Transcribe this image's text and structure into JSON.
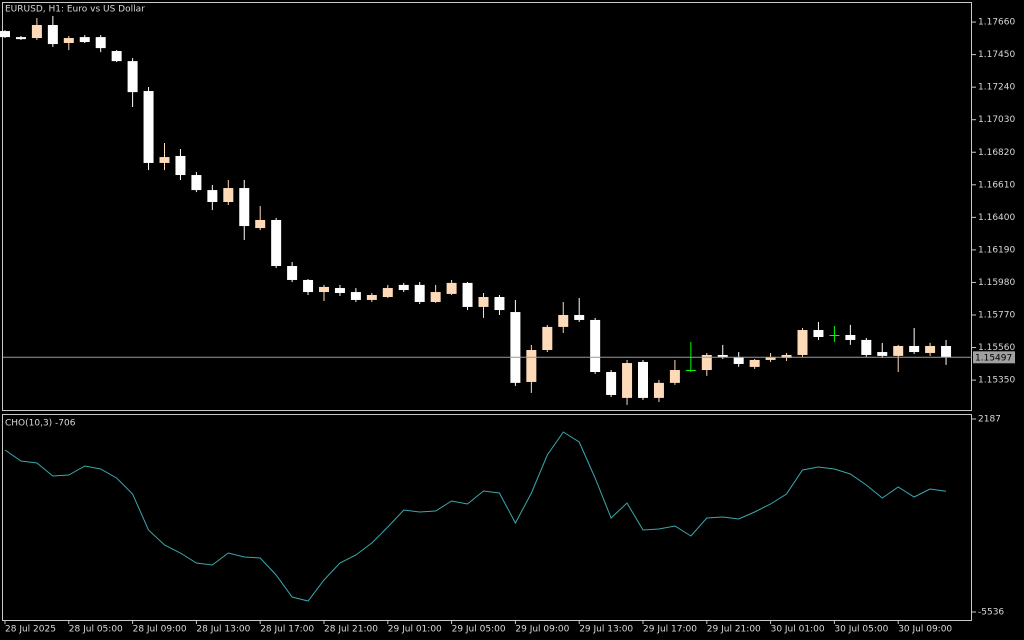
{
  "chart_data": [
    {
      "type": "candlestick",
      "title": "EURUSD, H1:  Euro vs US Dollar",
      "categories": [
        "28 Jul 2025",
        null,
        null,
        null,
        "28 Jul 05:00",
        null,
        null,
        null,
        "28 Jul 09:00",
        null,
        null,
        null,
        "28 Jul 13:00",
        null,
        null,
        null,
        "28 Jul 17:00",
        null,
        null,
        null,
        "28 Jul 21:00",
        null,
        null,
        null,
        "29 Jul 01:00",
        null,
        null,
        null,
        "29 Jul 05:00",
        null,
        null,
        null,
        "29 Jul 09:00",
        null,
        null,
        null,
        "29 Jul 13:00",
        null,
        null,
        null,
        "29 Jul 17:00",
        null,
        null,
        null,
        "29 Jul 21:00",
        null,
        null,
        null,
        "30 Jul 01:00",
        null,
        null,
        null,
        "30 Jul 05:00",
        null,
        null,
        null,
        "30 Jul 09:00",
        null,
        null,
        null
      ],
      "open": [
        1.17602,
        1.17563,
        1.17557,
        1.17641,
        1.17525,
        1.17563,
        1.17563,
        1.17473,
        1.17408,
        1.17215,
        1.16751,
        1.16796,
        1.16673,
        1.16576,
        1.16499,
        1.16589,
        1.16331,
        1.16383,
        1.16086,
        1.15996,
        1.15918,
        1.15944,
        1.15918,
        1.15867,
        1.15886,
        1.15964,
        1.15964,
        1.15854,
        1.15906,
        1.15977,
        1.15822,
        1.15886,
        1.15789,
        1.15338,
        1.15544,
        1.15693,
        1.1577,
        1.15738,
        1.15402,
        1.15235,
        1.15467,
        1.15235,
        1.15332,
        1.15415,
        1.15415,
        1.15512,
        1.15499,
        1.15435,
        1.1548,
        1.15493,
        1.15512,
        1.15673,
        1.15641,
        1.15641,
        1.15609,
        1.15531,
        1.15506,
        1.1557,
        1.15525,
        1.1557
      ],
      "high": [
        1.17608,
        1.1757,
        1.17686,
        1.17699,
        1.1757,
        1.17576,
        1.17576,
        1.17479,
        1.17428,
        1.17241,
        1.1688,
        1.16841,
        1.16692,
        1.16609,
        1.16641,
        1.16641,
        1.16473,
        1.16396,
        1.16112,
        1.16002,
        1.15964,
        1.15964,
        1.15944,
        1.15912,
        1.15964,
        1.15977,
        1.15983,
        1.15964,
        1.15996,
        1.15983,
        1.15912,
        1.15899,
        1.15867,
        1.15577,
        1.15706,
        1.15854,
        1.1588,
        1.15751,
        1.15415,
        1.1548,
        1.1548,
        1.15351,
        1.1548,
        1.15596,
        1.15525,
        1.15577,
        1.15531,
        1.15486,
        1.15525,
        1.15525,
        1.15686,
        1.15725,
        1.15699,
        1.15706,
        1.15622,
        1.1559,
        1.15577,
        1.15686,
        1.1559,
        1.15609
      ],
      "low": [
        1.17557,
        1.17544,
        1.17544,
        1.17499,
        1.17479,
        1.17525,
        1.17466,
        1.17402,
        1.17112,
        1.16705,
        1.16705,
        1.16641,
        1.16563,
        1.16447,
        1.1648,
        1.16254,
        1.16318,
        1.16073,
        1.15983,
        1.15899,
        1.1586,
        1.15893,
        1.15854,
        1.15854,
        1.1588,
        1.15918,
        1.15841,
        1.15848,
        1.15899,
        1.15802,
        1.15751,
        1.1577,
        1.15312,
        1.15267,
        1.15531,
        1.15654,
        1.15725,
        1.1539,
        1.15241,
        1.1519,
        1.15222,
        1.15209,
        1.15319,
        1.15402,
        1.15377,
        1.15486,
        1.15435,
        1.15422,
        1.15467,
        1.15473,
        1.15499,
        1.15609,
        1.15596,
        1.15577,
        1.15499,
        1.15493,
        1.15402,
        1.15519,
        1.15506,
        1.15448
      ],
      "close": [
        1.17563,
        1.1755,
        1.17641,
        1.17518,
        1.17557,
        1.17531,
        1.17492,
        1.17408,
        1.17208,
        1.16751,
        1.16789,
        1.16673,
        1.16576,
        1.16499,
        1.16589,
        1.16344,
        1.16383,
        1.16086,
        1.15996,
        1.15918,
        1.15951,
        1.15912,
        1.15867,
        1.15899,
        1.15944,
        1.15931,
        1.15854,
        1.15918,
        1.15977,
        1.15822,
        1.15886,
        1.15802,
        1.15332,
        1.15544,
        1.15693,
        1.1577,
        1.15738,
        1.15402,
        1.15254,
        1.1546,
        1.15235,
        1.15332,
        1.15415,
        1.15415,
        1.15512,
        1.15499,
        1.15454,
        1.1548,
        1.15499,
        1.15512,
        1.15673,
        1.15628,
        1.15641,
        1.15609,
        1.15512,
        1.15506,
        1.1557,
        1.15531,
        1.1557,
        1.15497
      ],
      "bull_color": "#ffdab9",
      "bear_color": "#ffffff",
      "doji_color": "#00ff00",
      "last_price": 1.15497,
      "ylim": [
        1.15157,
        1.17783
      ],
      "yticks": [
        {
          "value": 1.1766,
          "label": "1.17660"
        },
        {
          "value": 1.1745,
          "label": "1.17450"
        },
        {
          "value": 1.1724,
          "label": "1.17240"
        },
        {
          "value": 1.1703,
          "label": "1.17030"
        },
        {
          "value": 1.1682,
          "label": "1.16820"
        },
        {
          "value": 1.1661,
          "label": "1.16610"
        },
        {
          "value": 1.164,
          "label": "1.16400"
        },
        {
          "value": 1.1619,
          "label": "1.16190"
        },
        {
          "value": 1.1598,
          "label": "1.15980"
        },
        {
          "value": 1.1577,
          "label": "1.15770"
        },
        {
          "value": 1.1556,
          "label": "1.15560"
        },
        {
          "value": 1.1535,
          "label": "1.15350"
        }
      ]
    },
    {
      "type": "line",
      "title": "CHO(10,3) -706",
      "color": "#3aa8ad",
      "values": [
        946,
        506,
        426,
        -94,
        -54,
        306,
        186,
        -174,
        -815,
        -2255,
        -2856,
        -3176,
        -3576,
        -3656,
        -3176,
        -3336,
        -3376,
        -4056,
        -4937,
        -5097,
        -4256,
        -3576,
        -3256,
        -2775,
        -2135,
        -1455,
        -1535,
        -1495,
        -1095,
        -1215,
        -694,
        -774,
        -1975,
        -774,
        746,
        1667,
        1267,
        -174,
        -1775,
        -1175,
        -2255,
        -2215,
        -2095,
        -2495,
        -1775,
        -1735,
        -1815,
        -1535,
        -1215,
        -815,
        146,
        266,
        186,
        -14,
        -454,
        -975,
        -534,
        -935,
        -614,
        -706
      ],
      "ylim": [
        -5536,
        2187
      ],
      "yticks": [
        2187,
        -5536
      ]
    }
  ]
}
